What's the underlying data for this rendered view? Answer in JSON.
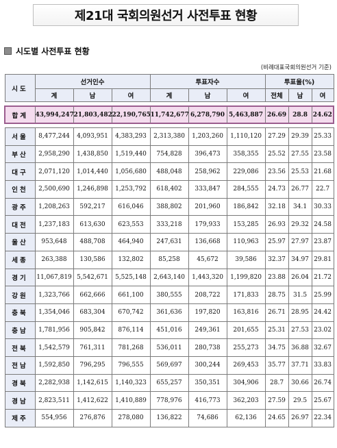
{
  "title": "제21대 국회의원선거 사전투표 현황",
  "section_title": "시도별 사전투표 현황",
  "note": "(비례대표국회의원선거 기준)",
  "headers": {
    "region": "시도",
    "electors": "선거인수",
    "voters": "투표자수",
    "rate": "투표율(%)",
    "sub_total": "계",
    "sub_male": "남",
    "sub_female": "여",
    "sub_all": "전체"
  },
  "total": {
    "region": "합계",
    "electors": [
      "43,994,247",
      "21,803,482",
      "22,190,765"
    ],
    "voters": [
      "11,742,677",
      "6,278,790",
      "5,463,887"
    ],
    "rate": [
      "26.69",
      "28.8",
      "24.62"
    ]
  },
  "rows": [
    {
      "region": "서울",
      "electors": [
        "8,477,244",
        "4,093,951",
        "4,383,293"
      ],
      "voters": [
        "2,313,380",
        "1,203,260",
        "1,110,120"
      ],
      "rate": [
        "27.29",
        "29.39",
        "25.33"
      ]
    },
    {
      "region": "부산",
      "electors": [
        "2,958,290",
        "1,438,850",
        "1,519,440"
      ],
      "voters": [
        "754,828",
        "396,473",
        "358,355"
      ],
      "rate": [
        "25.52",
        "27.55",
        "23.58"
      ]
    },
    {
      "region": "대구",
      "electors": [
        "2,071,120",
        "1,014,440",
        "1,056,680"
      ],
      "voters": [
        "488,048",
        "258,962",
        "229,086"
      ],
      "rate": [
        "23.56",
        "25.53",
        "21.68"
      ]
    },
    {
      "region": "인천",
      "electors": [
        "2,500,690",
        "1,246,898",
        "1,253,792"
      ],
      "voters": [
        "618,402",
        "333,847",
        "284,555"
      ],
      "rate": [
        "24.73",
        "26.77",
        "22.7"
      ]
    },
    {
      "region": "광주",
      "electors": [
        "1,208,263",
        "592,217",
        "616,046"
      ],
      "voters": [
        "388,802",
        "201,960",
        "186,842"
      ],
      "rate": [
        "32.18",
        "34.1",
        "30.33"
      ]
    },
    {
      "region": "대전",
      "electors": [
        "1,237,183",
        "613,630",
        "623,553"
      ],
      "voters": [
        "333,218",
        "179,933",
        "153,285"
      ],
      "rate": [
        "26.93",
        "29.32",
        "24.58"
      ]
    },
    {
      "region": "울산",
      "electors": [
        "953,648",
        "488,708",
        "464,940"
      ],
      "voters": [
        "247,631",
        "136,668",
        "110,963"
      ],
      "rate": [
        "25.97",
        "27.97",
        "23.87"
      ]
    },
    {
      "region": "세종",
      "electors": [
        "263,388",
        "130,586",
        "132,802"
      ],
      "voters": [
        "85,258",
        "45,672",
        "39,586"
      ],
      "rate": [
        "32.37",
        "34.97",
        "29.81"
      ]
    },
    {
      "region": "경기",
      "electors": [
        "11,067,819",
        "5,542,671",
        "5,525,148"
      ],
      "voters": [
        "2,643,140",
        "1,443,320",
        "1,199,820"
      ],
      "rate": [
        "23.88",
        "26.04",
        "21.72"
      ]
    },
    {
      "region": "강원",
      "electors": [
        "1,323,766",
        "662,666",
        "661,100"
      ],
      "voters": [
        "380,555",
        "208,722",
        "171,833"
      ],
      "rate": [
        "28.75",
        "31.5",
        "25.99"
      ]
    },
    {
      "region": "충북",
      "electors": [
        "1,354,046",
        "683,304",
        "670,742"
      ],
      "voters": [
        "361,636",
        "197,820",
        "163,816"
      ],
      "rate": [
        "26.71",
        "28.95",
        "24.42"
      ]
    },
    {
      "region": "충남",
      "electors": [
        "1,781,956",
        "905,842",
        "876,114"
      ],
      "voters": [
        "451,016",
        "249,361",
        "201,655"
      ],
      "rate": [
        "25.31",
        "27.53",
        "23.02"
      ]
    },
    {
      "region": "전북",
      "electors": [
        "1,542,579",
        "761,311",
        "781,268"
      ],
      "voters": [
        "536,011",
        "280,738",
        "255,273"
      ],
      "rate": [
        "34.75",
        "36.88",
        "32.67"
      ]
    },
    {
      "region": "전남",
      "electors": [
        "1,592,850",
        "796,295",
        "796,555"
      ],
      "voters": [
        "569,697",
        "300,244",
        "269,453"
      ],
      "rate": [
        "35.77",
        "37.71",
        "33.83"
      ]
    },
    {
      "region": "경북",
      "electors": [
        "2,282,938",
        "1,142,615",
        "1,140,323"
      ],
      "voters": [
        "655,257",
        "350,351",
        "304,906"
      ],
      "rate": [
        "28.7",
        "30.66",
        "26.74"
      ]
    },
    {
      "region": "경남",
      "electors": [
        "2,823,511",
        "1,412,622",
        "1,410,889"
      ],
      "voters": [
        "778,976",
        "416,773",
        "362,203"
      ],
      "rate": [
        "27.59",
        "29.5",
        "25.67"
      ]
    },
    {
      "region": "제주",
      "electors": [
        "554,956",
        "276,876",
        "278,080"
      ],
      "voters": [
        "136,822",
        "74,686",
        "62,136"
      ],
      "rate": [
        "24.65",
        "26.97",
        "22.34"
      ]
    }
  ]
}
